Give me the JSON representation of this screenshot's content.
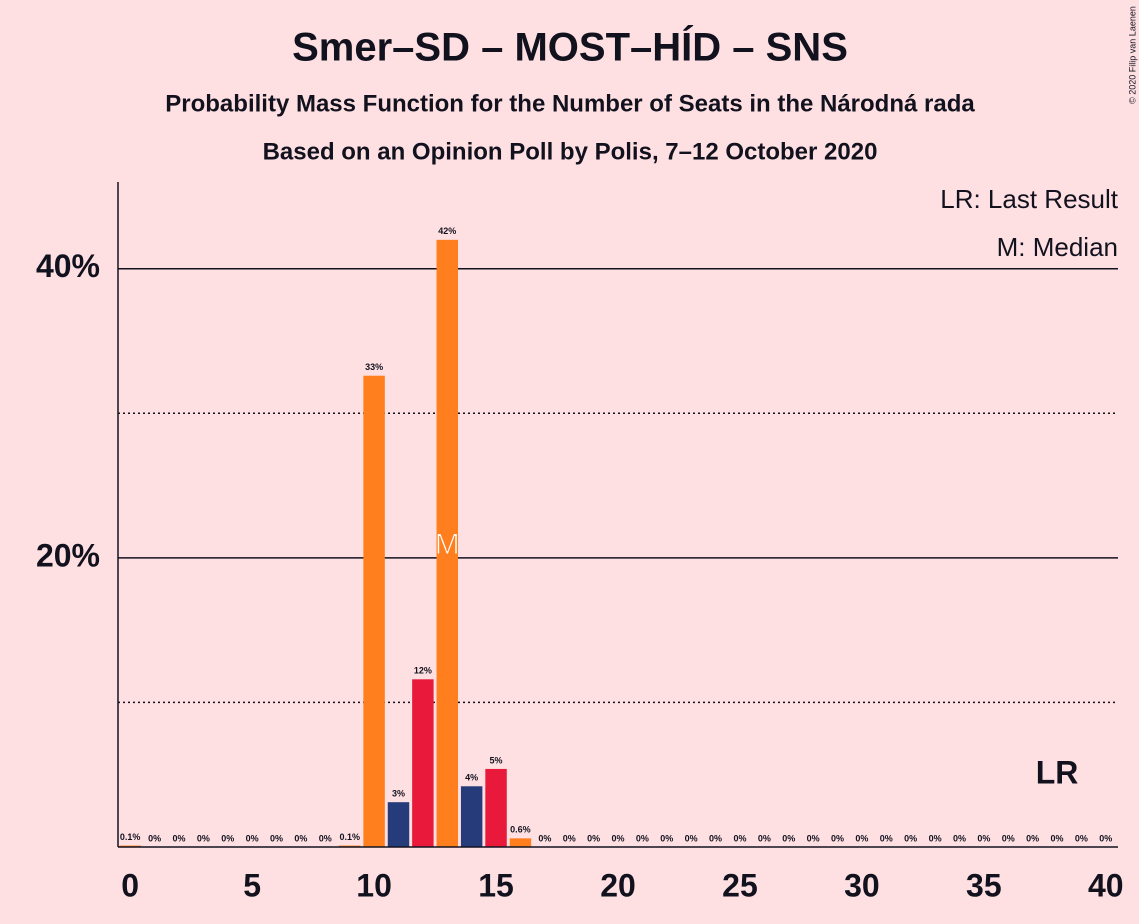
{
  "chart_data": {
    "type": "bar",
    "title": "Smer–SD – MOST–HÍD – SNS",
    "subtitle": "Probability Mass Function for the Number of Seats in the Národná rada",
    "subtitle2": "Based on an Opinion Poll by Polis, 7–12 October 2020",
    "copyright": "© 2020 Filip van Laenen",
    "x": [
      0,
      1,
      2,
      3,
      4,
      5,
      6,
      7,
      8,
      9,
      10,
      11,
      12,
      13,
      14,
      15,
      16,
      17,
      18,
      19,
      20,
      21,
      22,
      23,
      24,
      25,
      26,
      27,
      28,
      29,
      30,
      31,
      32,
      33,
      34,
      35,
      36,
      37,
      38,
      39,
      40
    ],
    "values": [
      0.1,
      0,
      0,
      0,
      0,
      0,
      0,
      0,
      0,
      0.1,
      32.6,
      3.1,
      11.6,
      42,
      4.2,
      5.4,
      0.6,
      0,
      0,
      0,
      0,
      0,
      0,
      0,
      0,
      0,
      0,
      0,
      0,
      0,
      0,
      0,
      0,
      0,
      0,
      0,
      0,
      0,
      0,
      0,
      0
    ],
    "value_labels": [
      "0.1%",
      "0%",
      "0%",
      "0%",
      "0%",
      "0%",
      "0%",
      "0%",
      "0%",
      "0.1%",
      "33%",
      "3%",
      "12%",
      "42%",
      "4%",
      "5%",
      "0.6%",
      "0%",
      "0%",
      "0%",
      "0%",
      "0%",
      "0%",
      "0%",
      "0%",
      "0%",
      "0%",
      "0%",
      "0%",
      "0%",
      "0%",
      "0%",
      "0%",
      "0%",
      "0%",
      "0%",
      "0%",
      "0%",
      "0%",
      "0%",
      "0%"
    ],
    "colors": [
      "#ff7f1e",
      "#253b7a",
      "#e8193a",
      "#ff7f1e",
      "#253b7a",
      "#e8193a",
      "#ff7f1e",
      "#253b7a",
      "#e8193a",
      "#ff7f1e",
      "#ff7f1e",
      "#253b7a",
      "#e8193a",
      "#ff7f1e",
      "#253b7a",
      "#e8193a",
      "#ff7f1e",
      "#253b7a",
      "#e8193a",
      "#ff7f1e",
      "#253b7a",
      "#e8193a",
      "#ff7f1e",
      "#253b7a",
      "#e8193a",
      "#ff7f1e",
      "#253b7a",
      "#e8193a",
      "#ff7f1e",
      "#253b7a",
      "#e8193a",
      "#ff7f1e",
      "#253b7a",
      "#e8193a",
      "#ff7f1e",
      "#253b7a",
      "#e8193a",
      "#ff7f1e",
      "#253b7a",
      "#e8193a",
      "#ff7f1e"
    ],
    "xlim": [
      -0.5,
      40.5
    ],
    "xticks": [
      0,
      5,
      10,
      15,
      20,
      25,
      30,
      35,
      40
    ],
    "ylim": [
      0,
      46
    ],
    "yticks": [
      {
        "value": 20,
        "label": "20%"
      },
      {
        "value": 40,
        "label": "40%"
      }
    ],
    "minor_yticks": [
      10,
      30
    ],
    "grid": true,
    "median": 13,
    "median_label": "M",
    "last_result": 38,
    "last_result_label": "LR",
    "legend": [
      "LR: Last Result",
      "M: Median"
    ]
  }
}
